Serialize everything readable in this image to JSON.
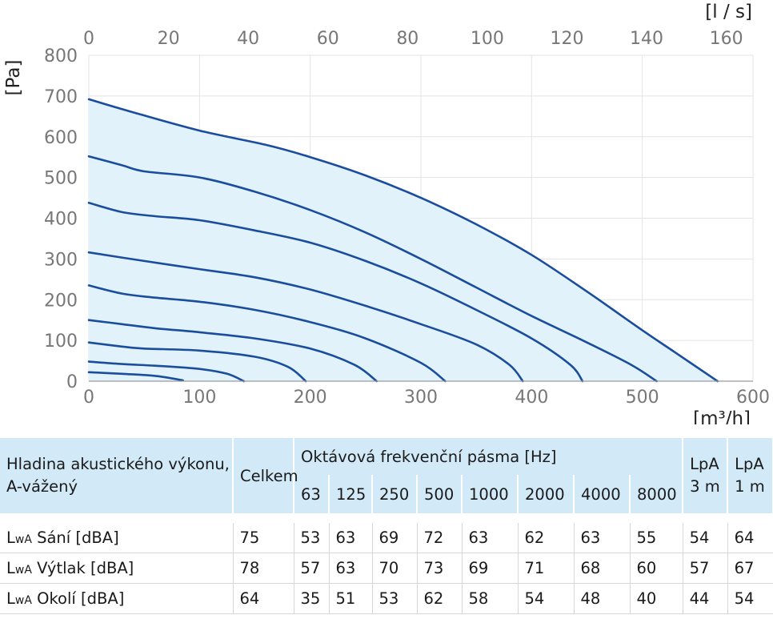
{
  "chart_data": {
    "type": "line",
    "x_unit": "[m³/h]",
    "x2_unit": "[l / s]",
    "y_unit": "[Pa]",
    "x_ticks": [
      "0",
      "100",
      "200",
      "300",
      "400",
      "500",
      "600"
    ],
    "x2_ticks": [
      "0",
      "20",
      "40",
      "60",
      "80",
      "100",
      "120",
      "140",
      "160"
    ],
    "y_ticks": [
      "0",
      "100",
      "200",
      "300",
      "400",
      "500",
      "600",
      "700",
      "800"
    ],
    "xlim": [
      0,
      600
    ],
    "x2lim": [
      0,
      166.7
    ],
    "ylim": [
      0,
      800
    ],
    "grid": true,
    "area_fill": "#e2f2fb",
    "line_color": "#1a4d9e",
    "series": [
      {
        "x": [
          0,
          40,
          100,
          160,
          200,
          250,
          300,
          350,
          400,
          450,
          500,
          530,
          568
        ],
        "y": [
          692,
          660,
          615,
          580,
          550,
          505,
          450,
          385,
          310,
          220,
          125,
          70,
          0
        ]
      },
      {
        "x": [
          0,
          30,
          50,
          100,
          150,
          200,
          250,
          300,
          350,
          400,
          450,
          490,
          513
        ],
        "y": [
          552,
          530,
          515,
          500,
          465,
          420,
          365,
          300,
          230,
          160,
          95,
          40,
          0
        ]
      },
      {
        "x": [
          0,
          30,
          60,
          100,
          150,
          200,
          250,
          300,
          350,
          400,
          435,
          446
        ],
        "y": [
          438,
          415,
          405,
          395,
          370,
          340,
          295,
          240,
          175,
          105,
          40,
          0
        ]
      },
      {
        "x": [
          0,
          50,
          100,
          150,
          200,
          250,
          300,
          350,
          380,
          392
        ],
        "y": [
          316,
          295,
          275,
          255,
          225,
          185,
          140,
          90,
          40,
          0
        ]
      },
      {
        "x": [
          0,
          30,
          60,
          100,
          150,
          200,
          250,
          300,
          322
        ],
        "y": [
          235,
          215,
          205,
          195,
          175,
          145,
          105,
          45,
          0
        ]
      },
      {
        "x": [
          0,
          30,
          60,
          100,
          150,
          200,
          240,
          260
        ],
        "y": [
          150,
          140,
          130,
          120,
          105,
          80,
          40,
          0
        ]
      },
      {
        "x": [
          0,
          30,
          50,
          100,
          150,
          180,
          196
        ],
        "y": [
          95,
          85,
          80,
          75,
          60,
          35,
          0
        ]
      },
      {
        "x": [
          0,
          30,
          60,
          100,
          125,
          140
        ],
        "y": [
          48,
          42,
          38,
          30,
          18,
          0
        ]
      },
      {
        "x": [
          0,
          30,
          60,
          85
        ],
        "y": [
          22,
          18,
          13,
          2
        ]
      }
    ]
  },
  "table": {
    "header_label": "Hladina akustického výkonu, A-vážený",
    "celkem": "Celkem",
    "octave_title": "Oktávová frekvenční pásma [Hz]",
    "bands": [
      "63",
      "125",
      "250",
      "500",
      "1000",
      "2000",
      "4000",
      "8000"
    ],
    "lpa3_a": "LpA",
    "lpa3_b": "3 m",
    "lpa1_a": "LpA",
    "lpa1_b": "1 m",
    "rows": [
      {
        "prefix": "L",
        "sub": "wA",
        "label": " Sání [dBA]",
        "values": [
          "75",
          "53",
          "63",
          "69",
          "72",
          "63",
          "62",
          "63",
          "55",
          "54",
          "64"
        ]
      },
      {
        "prefix": "L",
        "sub": "wA",
        "label": " Výtlak [dBA]",
        "values": [
          "78",
          "57",
          "63",
          "70",
          "73",
          "69",
          "71",
          "68",
          "60",
          "57",
          "67"
        ]
      },
      {
        "prefix": "L",
        "sub": "wA",
        "label": " Okolí [dBA]",
        "values": [
          "64",
          "35",
          "51",
          "53",
          "62",
          "58",
          "54",
          "48",
          "40",
          "44",
          "54"
        ]
      }
    ]
  }
}
